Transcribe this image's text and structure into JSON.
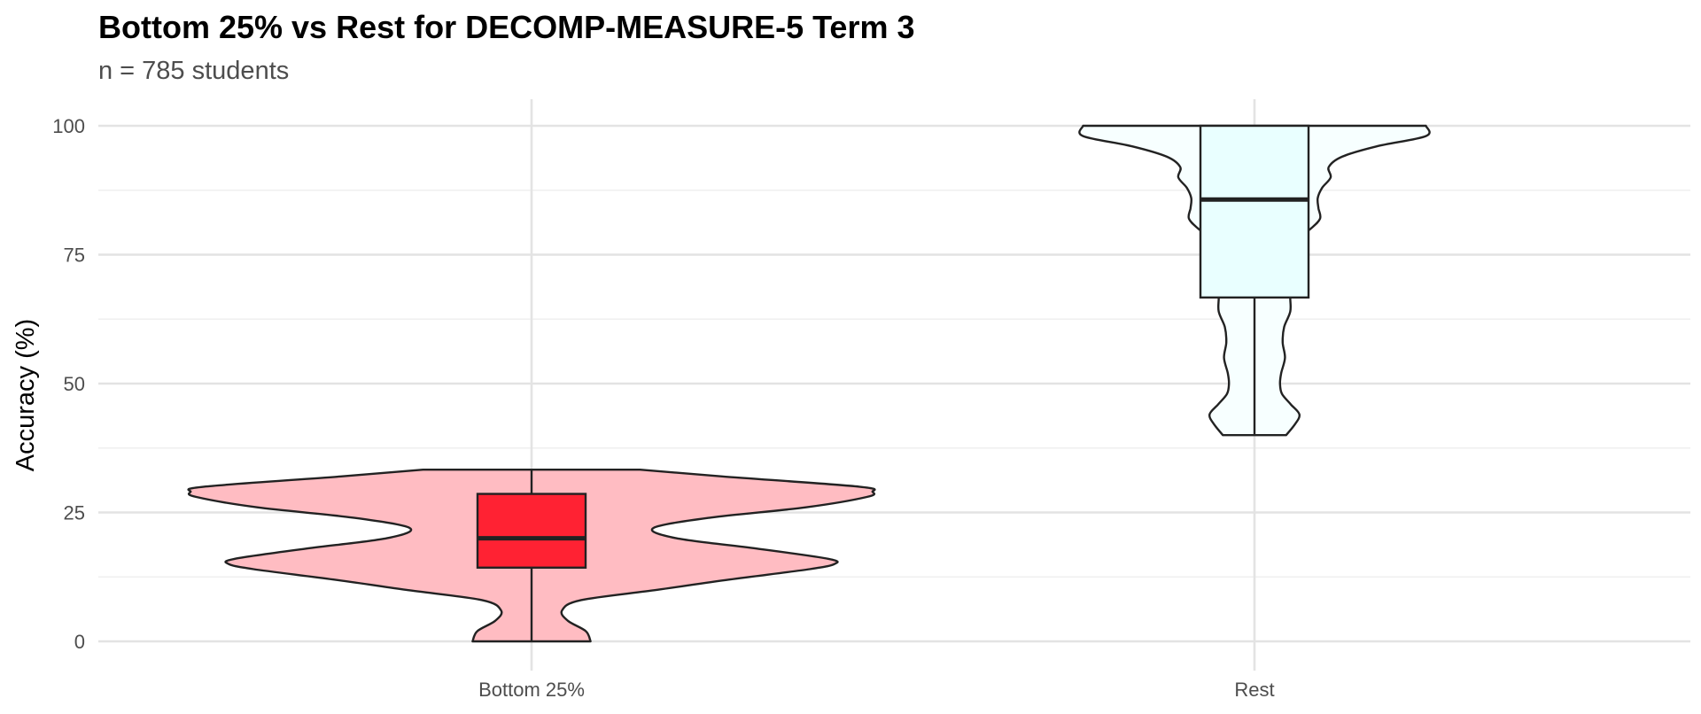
{
  "chart_data": {
    "type": "violin",
    "title": "Bottom 25% vs Rest for DECOMP-MEASURE-5 Term 3",
    "subtitle": "n = 785 students",
    "xlabel": "",
    "ylabel": "Accuracy (%)",
    "ylim": [
      0,
      100
    ],
    "y_ticks": [
      "0",
      "25",
      "50",
      "75",
      "100"
    ],
    "y_tick_values": [
      0,
      25,
      50,
      75,
      100
    ],
    "categories": [
      "Bottom 25%",
      "Rest"
    ],
    "grid": true,
    "legend": "none",
    "groups": [
      {
        "category": "Bottom 25%",
        "violin_fill": "#ffbcc2",
        "box_fill": "#ff2233",
        "box": {
          "min": 0,
          "q1": 14.3,
          "median": 20,
          "q3": 28.6,
          "max": 33.3
        },
        "density": [
          [
            0,
            0.155
          ],
          [
            2,
            0.142
          ],
          [
            4,
            0.095
          ],
          [
            6,
            0.08
          ],
          [
            8,
            0.13
          ],
          [
            10,
            0.33
          ],
          [
            12,
            0.52
          ],
          [
            14,
            0.73
          ],
          [
            15,
            0.795
          ],
          [
            16,
            0.78
          ],
          [
            18,
            0.59
          ],
          [
            20,
            0.38
          ],
          [
            22,
            0.32
          ],
          [
            24,
            0.47
          ],
          [
            26,
            0.72
          ],
          [
            28,
            0.88
          ],
          [
            29,
            0.895
          ],
          [
            30,
            0.86
          ],
          [
            32,
            0.5
          ],
          [
            33.3,
            0.285
          ]
        ]
      },
      {
        "category": "Rest",
        "violin_fill": "#f7ffff",
        "box_fill": "#e9ffff",
        "box": {
          "min": 40,
          "q1": 66.7,
          "median": 85.7,
          "q3": 100,
          "max": 100
        },
        "density": [
          [
            40,
            0.083
          ],
          [
            42,
            0.105
          ],
          [
            44,
            0.118
          ],
          [
            46,
            0.095
          ],
          [
            48,
            0.072
          ],
          [
            50,
            0.067
          ],
          [
            52,
            0.07
          ],
          [
            55,
            0.08
          ],
          [
            58,
            0.074
          ],
          [
            61,
            0.078
          ],
          [
            64,
            0.094
          ],
          [
            67,
            0.094
          ],
          [
            70,
            0.1
          ],
          [
            72,
            0.105
          ],
          [
            74,
            0.098
          ],
          [
            77,
            0.095
          ],
          [
            80,
            0.147
          ],
          [
            82,
            0.172
          ],
          [
            84,
            0.168
          ],
          [
            86,
            0.166
          ],
          [
            88,
            0.178
          ],
          [
            90,
            0.2
          ],
          [
            92,
            0.195
          ],
          [
            94,
            0.23
          ],
          [
            96,
            0.32
          ],
          [
            98,
            0.45
          ],
          [
            100,
            0.45
          ]
        ]
      }
    ]
  }
}
